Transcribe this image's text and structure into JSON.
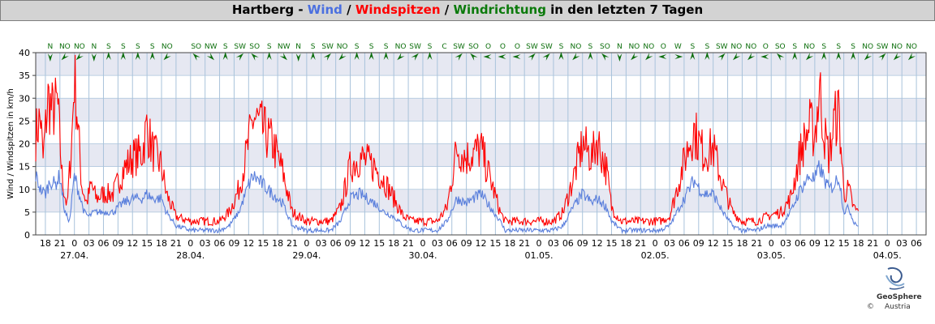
{
  "title": {
    "part1": "Hartberg - ",
    "part2": "Wind",
    "sep1": " / ",
    "part3": "Windspitzen",
    "sep2": " / ",
    "part4": "Windrichtung",
    "part5": " in den letzten 7 Tagen"
  },
  "colors": {
    "wind": "#5a7fdc",
    "gust": "#ff0000",
    "direction": "#0b6e0b",
    "band": "#e6e8f2",
    "grid": "#a9c3db"
  },
  "logo": {
    "name": "GeoSphere",
    "copyright": "©",
    "sub": "Austria",
    "icon": "geosphere-logo-icon"
  },
  "chart_data": {
    "type": "line",
    "ylabel": "Wind / Windspitzen in km/h",
    "ylim": [
      0,
      40
    ],
    "yticks": [
      0,
      5,
      10,
      15,
      20,
      25,
      30,
      35,
      40
    ],
    "x_range_hours": [
      -8,
      158
    ],
    "hour_ticks": [
      {
        "h": -6,
        "label": "18"
      },
      {
        "h": -3,
        "label": "21"
      },
      {
        "h": 0,
        "label": "0"
      },
      {
        "h": 3,
        "label": "03"
      },
      {
        "h": 6,
        "label": "06"
      },
      {
        "h": 9,
        "label": "09"
      },
      {
        "h": 12,
        "label": "12"
      },
      {
        "h": 15,
        "label": "15"
      },
      {
        "h": 18,
        "label": "18"
      },
      {
        "h": 21,
        "label": "21"
      },
      {
        "h": 24,
        "label": "0"
      },
      {
        "h": 27,
        "label": "03"
      },
      {
        "h": 30,
        "label": "06"
      },
      {
        "h": 33,
        "label": "09"
      },
      {
        "h": 36,
        "label": "12"
      },
      {
        "h": 39,
        "label": "15"
      },
      {
        "h": 42,
        "label": "18"
      },
      {
        "h": 45,
        "label": "21"
      },
      {
        "h": 48,
        "label": "0"
      },
      {
        "h": 51,
        "label": "03"
      },
      {
        "h": 54,
        "label": "06"
      },
      {
        "h": 57,
        "label": "09"
      },
      {
        "h": 60,
        "label": "12"
      },
      {
        "h": 63,
        "label": "15"
      },
      {
        "h": 66,
        "label": "18"
      },
      {
        "h": 69,
        "label": "21"
      },
      {
        "h": 72,
        "label": "0"
      },
      {
        "h": 75,
        "label": "03"
      },
      {
        "h": 78,
        "label": "06"
      },
      {
        "h": 81,
        "label": "09"
      },
      {
        "h": 84,
        "label": "12"
      },
      {
        "h": 87,
        "label": "15"
      },
      {
        "h": 90,
        "label": "18"
      },
      {
        "h": 93,
        "label": "21"
      },
      {
        "h": 96,
        "label": "0"
      },
      {
        "h": 99,
        "label": "03"
      },
      {
        "h": 102,
        "label": "06"
      },
      {
        "h": 105,
        "label": "09"
      },
      {
        "h": 108,
        "label": "12"
      },
      {
        "h": 111,
        "label": "15"
      },
      {
        "h": 114,
        "label": "18"
      },
      {
        "h": 117,
        "label": "21"
      },
      {
        "h": 120,
        "label": "0"
      },
      {
        "h": 123,
        "label": "03"
      },
      {
        "h": 126,
        "label": "06"
      },
      {
        "h": 129,
        "label": "09"
      },
      {
        "h": 132,
        "label": "12"
      },
      {
        "h": 135,
        "label": "15"
      },
      {
        "h": 138,
        "label": "18"
      },
      {
        "h": 141,
        "label": "21"
      },
      {
        "h": 144,
        "label": "0"
      },
      {
        "h": 147,
        "label": "03"
      },
      {
        "h": 150,
        "label": "06"
      },
      {
        "h": 153,
        "label": "09"
      },
      {
        "h": 156,
        "label": "12"
      },
      {
        "h": 159,
        "label": "15"
      },
      {
        "h": 162,
        "label": "18"
      },
      {
        "h": 165,
        "label": "21"
      },
      {
        "h": 168,
        "label": "0"
      },
      {
        "h": 171,
        "label": "03"
      },
      {
        "h": 174,
        "label": "06"
      }
    ],
    "date_labels": [
      {
        "h": 0,
        "label": "27.04."
      },
      {
        "h": 24,
        "label": "28.04."
      },
      {
        "h": 48,
        "label": "29.04."
      },
      {
        "h": 72,
        "label": "30.04."
      },
      {
        "h": 96,
        "label": "01.05."
      },
      {
        "h": 120,
        "label": "02.05."
      },
      {
        "h": 144,
        "label": "03.05."
      },
      {
        "h": 168,
        "label": "04.05."
      }
    ],
    "gust_keypoints": [
      [
        -8,
        22
      ],
      [
        -7,
        26
      ],
      [
        -6.5,
        16
      ],
      [
        -5.5,
        30
      ],
      [
        -4.5,
        27
      ],
      [
        -3.5,
        29
      ],
      [
        -2.5,
        12
      ],
      [
        -1.5,
        6
      ],
      [
        -0.5,
        22
      ],
      [
        0,
        35
      ],
      [
        0.5,
        28
      ],
      [
        1.5,
        11
      ],
      [
        2.5,
        7
      ],
      [
        3.5,
        11
      ],
      [
        4.5,
        8
      ],
      [
        6,
        9
      ],
      [
        8,
        9
      ],
      [
        10,
        14
      ],
      [
        12,
        17
      ],
      [
        14,
        18
      ],
      [
        15,
        24
      ],
      [
        16,
        19
      ],
      [
        18,
        15
      ],
      [
        19,
        9
      ],
      [
        21,
        4
      ],
      [
        24,
        3
      ],
      [
        27,
        3
      ],
      [
        30,
        3
      ],
      [
        32,
        5
      ],
      [
        34,
        10
      ],
      [
        36,
        20
      ],
      [
        37,
        26
      ],
      [
        39,
        23
      ],
      [
        41,
        20
      ],
      [
        43,
        14
      ],
      [
        45,
        5
      ],
      [
        48,
        3
      ],
      [
        51,
        3
      ],
      [
        53,
        3
      ],
      [
        55,
        6
      ],
      [
        57,
        15
      ],
      [
        59,
        17
      ],
      [
        62,
        15
      ],
      [
        64,
        12
      ],
      [
        66,
        8
      ],
      [
        68,
        4
      ],
      [
        70,
        3
      ],
      [
        72,
        3
      ],
      [
        75,
        3
      ],
      [
        77,
        6
      ],
      [
        79,
        19
      ],
      [
        81,
        17
      ],
      [
        84,
        19
      ],
      [
        86,
        12
      ],
      [
        88,
        5
      ],
      [
        89,
        3
      ],
      [
        91,
        3
      ],
      [
        93,
        3
      ],
      [
        96,
        3
      ],
      [
        99,
        3
      ],
      [
        101,
        5
      ],
      [
        103,
        12
      ],
      [
        105,
        20
      ],
      [
        107,
        17
      ],
      [
        108,
        21
      ],
      [
        110,
        14
      ],
      [
        111,
        6
      ],
      [
        113,
        3
      ],
      [
        116,
        3
      ],
      [
        119,
        3
      ],
      [
        121,
        3
      ],
      [
        123,
        4
      ],
      [
        125,
        12
      ],
      [
        127,
        20
      ],
      [
        128,
        23
      ],
      [
        130,
        18
      ],
      [
        132,
        19
      ],
      [
        134,
        11
      ],
      [
        136,
        5
      ],
      [
        138,
        3
      ],
      [
        141,
        3
      ],
      [
        143,
        4
      ],
      [
        146,
        5
      ],
      [
        148,
        8
      ],
      [
        150,
        18
      ],
      [
        152,
        24
      ],
      [
        153,
        22
      ],
      [
        154,
        32
      ],
      [
        155,
        22
      ],
      [
        156,
        17
      ],
      [
        157,
        25
      ],
      [
        158,
        27
      ],
      [
        159,
        9
      ],
      [
        160,
        10
      ],
      [
        161,
        6
      ],
      [
        162,
        5
      ]
    ],
    "wind_keypoints": [
      [
        -8,
        13
      ],
      [
        -7,
        10
      ],
      [
        -6,
        9
      ],
      [
        -5,
        12
      ],
      [
        -4,
        11
      ],
      [
        -3,
        13
      ],
      [
        -2,
        5
      ],
      [
        -1,
        3
      ],
      [
        0,
        13
      ],
      [
        1,
        9
      ],
      [
        2,
        5
      ],
      [
        3,
        4
      ],
      [
        4,
        5
      ],
      [
        6,
        5
      ],
      [
        8,
        5
      ],
      [
        10,
        7
      ],
      [
        12,
        8
      ],
      [
        14,
        8
      ],
      [
        15,
        9
      ],
      [
        16,
        8
      ],
      [
        18,
        8
      ],
      [
        19,
        5
      ],
      [
        21,
        2
      ],
      [
        24,
        1
      ],
      [
        27,
        1
      ],
      [
        30,
        1
      ],
      [
        32,
        2
      ],
      [
        34,
        5
      ],
      [
        36,
        11
      ],
      [
        37,
        13
      ],
      [
        39,
        11
      ],
      [
        41,
        9
      ],
      [
        43,
        7
      ],
      [
        45,
        2
      ],
      [
        48,
        1
      ],
      [
        51,
        1
      ],
      [
        53,
        1
      ],
      [
        55,
        3
      ],
      [
        57,
        8
      ],
      [
        59,
        9
      ],
      [
        62,
        7
      ],
      [
        64,
        5
      ],
      [
        66,
        4
      ],
      [
        68,
        2
      ],
      [
        70,
        1
      ],
      [
        72,
        1
      ],
      [
        75,
        1
      ],
      [
        77,
        3
      ],
      [
        79,
        8
      ],
      [
        81,
        7
      ],
      [
        84,
        9
      ],
      [
        86,
        6
      ],
      [
        88,
        3
      ],
      [
        89,
        1
      ],
      [
        91,
        1
      ],
      [
        93,
        1
      ],
      [
        96,
        1
      ],
      [
        99,
        1
      ],
      [
        101,
        2
      ],
      [
        103,
        6
      ],
      [
        105,
        9
      ],
      [
        107,
        7
      ],
      [
        108,
        8
      ],
      [
        110,
        6
      ],
      [
        111,
        3
      ],
      [
        113,
        1
      ],
      [
        116,
        1
      ],
      [
        119,
        1
      ],
      [
        121,
        1
      ],
      [
        123,
        2
      ],
      [
        125,
        6
      ],
      [
        127,
        10
      ],
      [
        128,
        12
      ],
      [
        130,
        9
      ],
      [
        132,
        9
      ],
      [
        134,
        5
      ],
      [
        136,
        2
      ],
      [
        138,
        1
      ],
      [
        141,
        1
      ],
      [
        143,
        2
      ],
      [
        146,
        2
      ],
      [
        148,
        5
      ],
      [
        150,
        10
      ],
      [
        152,
        13
      ],
      [
        153,
        12
      ],
      [
        154,
        15
      ],
      [
        155,
        12
      ],
      [
        156,
        10
      ],
      [
        157,
        11
      ],
      [
        158,
        13
      ],
      [
        159,
        5
      ],
      [
        160,
        6
      ],
      [
        161,
        3
      ],
      [
        162,
        2
      ]
    ],
    "direction_row": [
      {
        "label": "N"
      },
      {
        "label": "NO"
      },
      {
        "label": "NO"
      },
      {
        "label": "N"
      },
      {
        "label": "S"
      },
      {
        "label": "S"
      },
      {
        "label": "S"
      },
      {
        "label": "S"
      },
      {
        "label": "NO"
      },
      {
        "label": ""
      },
      {
        "label": "SO"
      },
      {
        "label": "NW"
      },
      {
        "label": "S"
      },
      {
        "label": "SW"
      },
      {
        "label": "SO"
      },
      {
        "label": "S"
      },
      {
        "label": "NW"
      },
      {
        "label": "N"
      },
      {
        "label": "S"
      },
      {
        "label": "SW"
      },
      {
        "label": "NO"
      },
      {
        "label": "S"
      },
      {
        "label": "S"
      },
      {
        "label": "S"
      },
      {
        "label": "NO"
      },
      {
        "label": "SW"
      },
      {
        "label": "S"
      },
      {
        "label": "C"
      },
      {
        "label": "SW"
      },
      {
        "label": "SO"
      },
      {
        "label": "O"
      },
      {
        "label": "O"
      },
      {
        "label": "O"
      },
      {
        "label": "SW"
      },
      {
        "label": "SW"
      },
      {
        "label": "S"
      },
      {
        "label": "NO"
      },
      {
        "label": "S"
      },
      {
        "label": "SO"
      },
      {
        "label": "N"
      },
      {
        "label": "NO"
      },
      {
        "label": "NO"
      },
      {
        "label": "O"
      },
      {
        "label": "W"
      },
      {
        "label": "S"
      },
      {
        "label": "S"
      },
      {
        "label": "SW"
      },
      {
        "label": "NO"
      },
      {
        "label": "NO"
      },
      {
        "label": "O"
      },
      {
        "label": "SO"
      },
      {
        "label": "S"
      },
      {
        "label": "NO"
      },
      {
        "label": "S"
      },
      {
        "label": "S"
      },
      {
        "label": "S"
      },
      {
        "label": "NO"
      },
      {
        "label": "SW"
      },
      {
        "label": "NO"
      },
      {
        "label": "NO"
      }
    ],
    "grid": true,
    "legend": "none"
  }
}
